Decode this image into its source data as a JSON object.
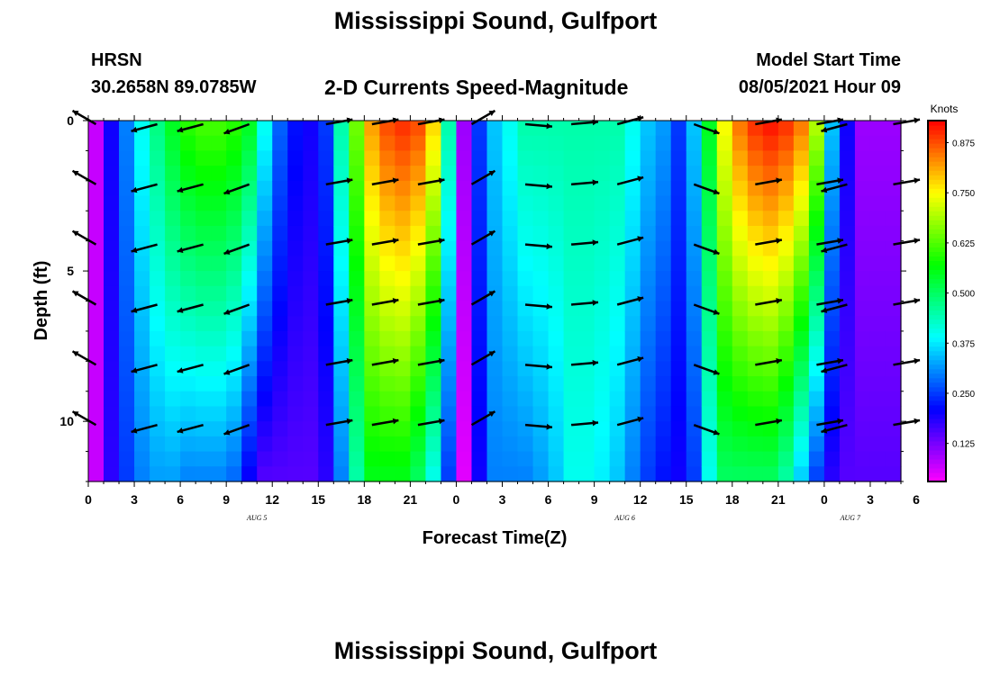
{
  "header": {
    "title": "Mississippi Sound, Gulfport",
    "station_name": "HRSN",
    "station_coords": "30.2658N  89.0785W",
    "subtitle": "2-D Currents Speed-Magnitude",
    "model_label": "Model Start Time",
    "model_time": "08/05/2021 Hour 09"
  },
  "footer": {
    "title": "Mississippi Sound, Gulfport"
  },
  "chart_data": {
    "type": "heatmap",
    "title": "2-D Currents Speed-Magnitude",
    "xlabel": "Forecast Time(Z)",
    "ylabel": "Depth (ft)",
    "x_tick_labels": [
      "0",
      "3",
      "6",
      "9",
      "12",
      "15",
      "18",
      "21",
      "0",
      "3",
      "6",
      "9",
      "12",
      "15",
      "18",
      "21",
      "0",
      "3",
      "6"
    ],
    "x_range_hours": [
      0,
      53
    ],
    "date_labels": [
      {
        "label": "AUG 5",
        "hour": 11
      },
      {
        "label": "AUG 6",
        "hour": 35
      },
      {
        "label": "AUG 7",
        "hour": 49.7
      }
    ],
    "y_tick_labels": [
      "0",
      "5",
      "10"
    ],
    "y_range_ft": [
      0,
      12
    ],
    "y_inverted": true,
    "colorbar": {
      "label": "Knots",
      "tick_labels": [
        "0.125",
        "0.250",
        "0.375",
        "0.500",
        "0.625",
        "0.750",
        "0.875"
      ],
      "range": [
        0.03,
        0.93
      ]
    },
    "speed_profile": {
      "hours": [
        0,
        1,
        2,
        3,
        4,
        5,
        6,
        7,
        8,
        9,
        10,
        11,
        12,
        13,
        14,
        15,
        16,
        17,
        18,
        19,
        20,
        21,
        22,
        23,
        24,
        25,
        26,
        27,
        28,
        29,
        30,
        31,
        32,
        33,
        34,
        35,
        36,
        37,
        38,
        39,
        40,
        41,
        42,
        43,
        44,
        45,
        46,
        47,
        48,
        49,
        50,
        51,
        52,
        53
      ],
      "surface_knots": [
        0.07,
        0.2,
        0.3,
        0.4,
        0.48,
        0.55,
        0.6,
        0.62,
        0.62,
        0.6,
        0.55,
        0.4,
        0.28,
        0.22,
        0.2,
        0.25,
        0.45,
        0.65,
        0.82,
        0.88,
        0.9,
        0.88,
        0.78,
        0.45,
        0.1,
        0.25,
        0.35,
        0.4,
        0.45,
        0.45,
        0.45,
        0.45,
        0.45,
        0.45,
        0.45,
        0.4,
        0.35,
        0.32,
        0.25,
        0.35,
        0.55,
        0.75,
        0.85,
        0.9,
        0.92,
        0.9,
        0.85,
        0.7,
        0.35,
        0.2,
        0.1,
        0.1,
        0.1,
        0.1
      ],
      "bottom_knots": [
        0.07,
        0.18,
        0.25,
        0.3,
        0.32,
        0.32,
        0.3,
        0.3,
        0.3,
        0.28,
        0.2,
        0.15,
        0.15,
        0.15,
        0.15,
        0.18,
        0.3,
        0.45,
        0.55,
        0.55,
        0.55,
        0.5,
        0.4,
        0.25,
        0.05,
        0.2,
        0.3,
        0.3,
        0.3,
        0.32,
        0.35,
        0.4,
        0.4,
        0.38,
        0.35,
        0.3,
        0.25,
        0.22,
        0.2,
        0.25,
        0.4,
        0.5,
        0.5,
        0.5,
        0.5,
        0.45,
        0.35,
        0.25,
        0.18,
        0.15,
        0.15,
        0.15,
        0.15,
        0.15
      ]
    },
    "vectors": {
      "hours": [
        0.5,
        4.5,
        7.5,
        10.5,
        15.5,
        18.5,
        21.5,
        25,
        28.5,
        31.5,
        34.5,
        39.5,
        43.5,
        47.5,
        49.5,
        52.5
      ],
      "depths_ft": [
        0,
        2,
        4,
        6,
        8,
        10
      ],
      "directions_deg": [
        300,
        255,
        255,
        250,
        80,
        80,
        80,
        60,
        95,
        85,
        75,
        110,
        80,
        80,
        255,
        80
      ]
    }
  }
}
